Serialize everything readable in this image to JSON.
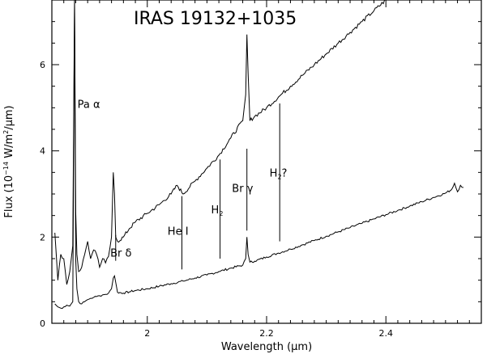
{
  "chart_data": {
    "type": "line",
    "title": "IRAS 19132+1035",
    "xlabel": "Wavelength (μm)",
    "ylabel": "Flux (10⁻¹⁴ W/m²/μm)",
    "xlabel_parts": {
      "main": "Wavelength (",
      "mu": "μ",
      "tail": "m)"
    },
    "ylabel_parts": {
      "main": "Flux (10",
      "exp": "−14",
      "mid": " W/m",
      "sq": "2",
      "tail": "/μm)"
    },
    "xlim": [
      1.84,
      2.56
    ],
    "ylim": [
      0,
      7.5
    ],
    "xticks": [
      {
        "v": 2.0,
        "label": "2"
      },
      {
        "v": 2.2,
        "label": "2.2"
      },
      {
        "v": 2.4,
        "label": "2.4"
      }
    ],
    "yticks": [
      {
        "v": 0,
        "label": "0"
      },
      {
        "v": 2,
        "label": "2"
      },
      {
        "v": 4,
        "label": "4"
      },
      {
        "v": 6,
        "label": "6"
      }
    ],
    "grid": false,
    "series": [
      {
        "x": [
          1.845,
          1.85,
          1.855,
          1.86,
          1.865,
          1.87,
          1.875,
          1.878,
          1.88,
          1.882,
          1.885,
          1.89,
          1.895,
          1.9,
          1.905,
          1.91,
          1.915,
          1.92,
          1.925,
          1.93,
          1.935,
          1.94,
          1.943,
          1.945,
          1.947,
          1.95,
          1.96,
          1.97,
          1.98,
          2.0,
          2.02,
          2.04,
          2.06,
          2.08,
          2.1,
          2.12,
          2.14,
          2.16,
          2.165,
          2.167,
          2.169,
          2.172,
          2.18,
          2.2,
          2.22,
          2.24,
          2.26,
          2.28,
          2.3,
          2.32,
          2.34,
          2.36,
          2.38,
          2.4,
          2.42,
          2.44,
          2.46,
          2.48,
          2.5,
          2.51,
          2.515,
          2.52,
          2.525,
          2.53
        ],
        "y": [
          0.45,
          0.38,
          0.35,
          0.38,
          0.42,
          0.4,
          0.5,
          7.5,
          1.5,
          0.8,
          0.5,
          0.45,
          0.5,
          0.55,
          0.58,
          0.6,
          0.62,
          0.64,
          0.66,
          0.67,
          0.7,
          0.8,
          1.05,
          1.1,
          0.95,
          0.72,
          0.7,
          0.73,
          0.76,
          0.8,
          0.86,
          0.92,
          0.98,
          1.05,
          1.12,
          1.2,
          1.28,
          1.35,
          1.5,
          2.0,
          1.6,
          1.42,
          1.44,
          1.54,
          1.63,
          1.72,
          1.82,
          1.92,
          2.02,
          2.12,
          2.22,
          2.32,
          2.42,
          2.52,
          2.62,
          2.72,
          2.82,
          2.92,
          3.02,
          3.1,
          3.25,
          3.05,
          3.2,
          3.15
        ]
      },
      {
        "x": [
          1.845,
          1.85,
          1.855,
          1.86,
          1.865,
          1.87,
          1.875,
          1.878,
          1.88,
          1.882,
          1.885,
          1.89,
          1.895,
          1.9,
          1.905,
          1.91,
          1.915,
          1.92,
          1.925,
          1.93,
          1.935,
          1.94,
          1.943,
          1.945,
          1.947,
          1.95,
          1.96,
          1.97,
          1.98,
          2.0,
          2.02,
          2.04,
          2.05,
          2.06,
          2.08,
          2.1,
          2.12,
          2.14,
          2.16,
          2.165,
          2.167,
          2.169,
          2.172,
          2.18,
          2.2,
          2.22,
          2.24,
          2.26,
          2.28,
          2.3,
          2.32,
          2.34,
          2.36,
          2.38,
          2.4,
          2.42
        ],
        "y": [
          2.1,
          1.0,
          1.6,
          1.5,
          0.9,
          1.2,
          1.8,
          7.5,
          2.6,
          1.6,
          1.2,
          1.3,
          1.6,
          1.9,
          1.5,
          1.7,
          1.6,
          1.3,
          1.5,
          1.4,
          1.55,
          2.0,
          3.5,
          3.0,
          2.0,
          1.9,
          2.0,
          2.2,
          2.35,
          2.55,
          2.75,
          3.0,
          3.2,
          3.0,
          3.3,
          3.6,
          3.9,
          4.3,
          4.7,
          5.3,
          6.7,
          5.8,
          4.7,
          4.8,
          5.0,
          5.25,
          5.5,
          5.75,
          6.0,
          6.25,
          6.5,
          6.75,
          7.0,
          7.25,
          7.5,
          7.75
        ]
      }
    ],
    "annotations": [
      {
        "id": "pa-alpha",
        "text": "Pa α",
        "x": 1.883,
        "y": 5.0
      },
      {
        "id": "br-delta",
        "text": "Br δ",
        "x": 1.938,
        "y": 1.55
      },
      {
        "id": "he-i",
        "text": "He I",
        "x": 2.034,
        "y": 2.05
      },
      {
        "id": "h2",
        "main": "H",
        "sub": "2",
        "x": 2.107,
        "y": 2.55
      },
      {
        "id": "br-gamma",
        "text": "Br γ",
        "x": 2.142,
        "y": 3.05
      },
      {
        "id": "h2q",
        "main": "H",
        "sub": "2",
        "tail": "?",
        "x": 2.205,
        "y": 3.4
      }
    ],
    "marker_lines": [
      {
        "x": 1.947,
        "y1": 1.45,
        "y2": 2.05
      },
      {
        "x": 2.058,
        "y1": 1.25,
        "y2": 2.95
      },
      {
        "x": 2.122,
        "y1": 1.5,
        "y2": 3.8
      },
      {
        "x": 2.167,
        "y1": 2.15,
        "y2": 4.05
      },
      {
        "x": 2.222,
        "y1": 1.9,
        "y2": 5.1
      }
    ]
  }
}
